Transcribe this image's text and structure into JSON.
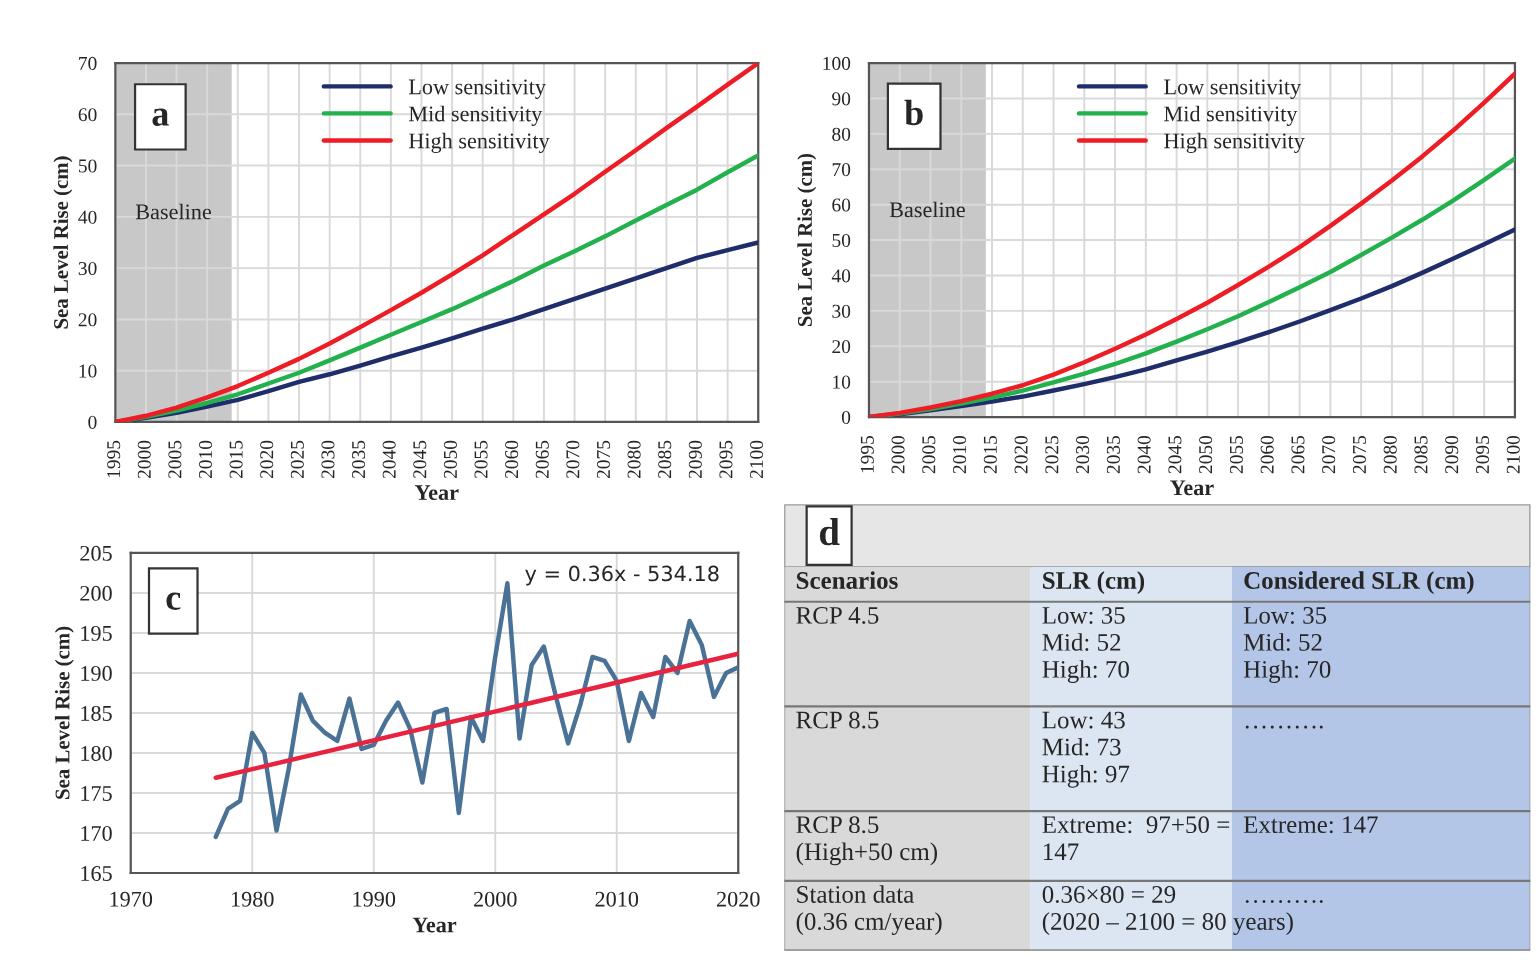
{
  "chart_data": [
    {
      "type": "line",
      "title": "a",
      "xlabel": "Year",
      "ylabel": "Sea Level Rise (cm)",
      "x": [
        1995,
        2000,
        2005,
        2010,
        2015,
        2020,
        2025,
        2030,
        2035,
        2040,
        2045,
        2050,
        2055,
        2060,
        2065,
        2070,
        2075,
        2080,
        2085,
        2090,
        2095,
        2100
      ],
      "series": [
        {
          "name": "Low sensitivity",
          "color": "#1f2d6b",
          "values": [
            0,
            0.8,
            1.8,
            3.0,
            4.3,
            6,
            7.8,
            9.3,
            11,
            12.8,
            14.5,
            16.3,
            18.2,
            20,
            22,
            24,
            26,
            28,
            30,
            32,
            33.5,
            35
          ]
        },
        {
          "name": "Mid sensitivity",
          "color": "#22b14c",
          "values": [
            0,
            1,
            2.2,
            3.7,
            5.4,
            7.5,
            9.6,
            12,
            14.5,
            17,
            19.5,
            22,
            24.7,
            27.5,
            30.5,
            33.3,
            36.2,
            39.3,
            42.3,
            45.3,
            48.7,
            52
          ]
        },
        {
          "name": "High sensitivity",
          "color": "#ee1c25",
          "values": [
            0,
            1.2,
            2.8,
            4.8,
            7,
            9.6,
            12.3,
            15.3,
            18.5,
            21.8,
            25.2,
            28.8,
            32.5,
            36.5,
            40.5,
            44.5,
            48.8,
            53,
            57.3,
            61.5,
            65.8,
            70
          ]
        }
      ],
      "xlim": [
        1995,
        2100
      ],
      "xticks": [
        1995,
        2000,
        2005,
        2010,
        2015,
        2020,
        2025,
        2030,
        2035,
        2040,
        2045,
        2050,
        2055,
        2060,
        2065,
        2070,
        2075,
        2080,
        2085,
        2090,
        2095,
        2100
      ],
      "ylim": [
        0,
        70
      ],
      "yticks": [
        0,
        10,
        20,
        30,
        40,
        50,
        60,
        70
      ],
      "grid": true,
      "legend": "top",
      "bands": [
        {
          "axis": "x",
          "from": 1995,
          "to": 2014,
          "label": "Baseline",
          "color": "#c8c8c8"
        }
      ]
    },
    {
      "type": "line",
      "title": "b",
      "xlabel": "Year",
      "ylabel": "Sea Level Rise (cm)",
      "x": [
        1995,
        2000,
        2005,
        2010,
        2015,
        2020,
        2025,
        2030,
        2035,
        2040,
        2045,
        2050,
        2055,
        2060,
        2065,
        2070,
        2075,
        2080,
        2085,
        2090,
        2095,
        2100
      ],
      "series": [
        {
          "name": "Low sensitivity",
          "color": "#1f2d6b",
          "values": [
            0,
            0.8,
            1.9,
            3.1,
            4.4,
            5.8,
            7.5,
            9.3,
            11.3,
            13.5,
            16,
            18.5,
            21.2,
            24,
            27,
            30.2,
            33.5,
            37,
            40.8,
            44.8,
            48.8,
            53
          ]
        },
        {
          "name": "Mid sensitivity",
          "color": "#22b14c",
          "values": [
            0,
            1,
            2.3,
            3.8,
            5.5,
            7.5,
            9.8,
            12.3,
            15,
            18,
            21.3,
            24.8,
            28.5,
            32.5,
            36.7,
            41,
            45.8,
            50.7,
            55.8,
            61.2,
            67,
            73
          ]
        },
        {
          "name": "High sensitivity",
          "color": "#ee1c25",
          "values": [
            0,
            1.2,
            2.7,
            4.5,
            6.6,
            9,
            12,
            15.5,
            19.3,
            23.3,
            27.7,
            32.3,
            37.3,
            42.5,
            48,
            54,
            60.3,
            66.8,
            73.7,
            81,
            88.8,
            97
          ]
        }
      ],
      "xlim": [
        1995,
        2100
      ],
      "xticks": [
        1995,
        2000,
        2005,
        2010,
        2015,
        2020,
        2025,
        2030,
        2035,
        2040,
        2045,
        2050,
        2055,
        2060,
        2065,
        2070,
        2075,
        2080,
        2085,
        2090,
        2095,
        2100
      ],
      "ylim": [
        0,
        100
      ],
      "yticks": [
        0,
        10,
        20,
        30,
        40,
        50,
        60,
        70,
        80,
        90,
        100
      ],
      "grid": true,
      "legend": "top",
      "bands": [
        {
          "axis": "x",
          "from": 1995,
          "to": 2014,
          "label": "Baseline",
          "color": "#c8c8c8"
        }
      ]
    },
    {
      "type": "line",
      "title": "c",
      "xlabel": "Year",
      "ylabel": "Sea Level Rise (cm)",
      "series": [
        {
          "color": "#4a7196",
          "x": [
            1977,
            1978,
            1979,
            1980,
            1981,
            1982,
            1983,
            1984,
            1985,
            1986,
            1987,
            1988,
            1989,
            1990,
            1991,
            1992,
            1993,
            1994,
            1995,
            1996,
            1997,
            1998,
            1999,
            2000,
            2001,
            2002,
            2003,
            2004,
            2005,
            2006,
            2007,
            2008,
            2009,
            2010,
            2011,
            2012,
            2013,
            2014,
            2015,
            2016,
            2017,
            2018,
            2019,
            2020
          ],
          "values": [
            169.5,
            173,
            174,
            182.5,
            180,
            170.3,
            178,
            187.3,
            184,
            182.5,
            181.5,
            186.8,
            180.5,
            181,
            184,
            186.3,
            183,
            176.3,
            185,
            185.5,
            172.5,
            184.5,
            181.5,
            192,
            201.2,
            181.8,
            191,
            193.3,
            187,
            181.2,
            186,
            192,
            191.5,
            189,
            181.5,
            187.5,
            184.5,
            192,
            190,
            196.5,
            193.5,
            187,
            190,
            190.7
          ]
        },
        {
          "color": "#e8233f",
          "x": [
            1977,
            2020
          ],
          "values": [
            176.9,
            192.4
          ]
        }
      ],
      "xlim": [
        1970,
        2020
      ],
      "xticks": [
        1970,
        1980,
        1990,
        2000,
        2010,
        2020
      ],
      "ylim": [
        165,
        205
      ],
      "yticks": [
        165,
        170,
        175,
        180,
        185,
        190,
        195,
        200,
        205
      ],
      "grid": true,
      "annotations": [
        "y = 0.36x - 534.18"
      ]
    },
    {
      "type": "other",
      "title": "d",
      "colors": [
        "#d9d9d9",
        "#dce6f2",
        "#b4c6e7"
      ],
      "annotations": [
        "Scenarios",
        "SLR (cm)",
        "Considered SLR (cm)",
        "RCP 4.5",
        "Low: 35\nMid: 52\nHigh: 70",
        "Low: 35\nMid: 52\nHigh: 70",
        "RCP 8.5",
        "Low: 43\nMid: 73\nHigh: 97",
        "……….",
        "RCP 8.5\n(High+50 cm)",
        "Extreme:  97+50 =\n147",
        "Extreme: 147",
        "Station data\n(0.36 cm/year)",
        "0.36×80 = 29\n(2020 – 2100 = 80 years)",
        "………."
      ]
    }
  ]
}
